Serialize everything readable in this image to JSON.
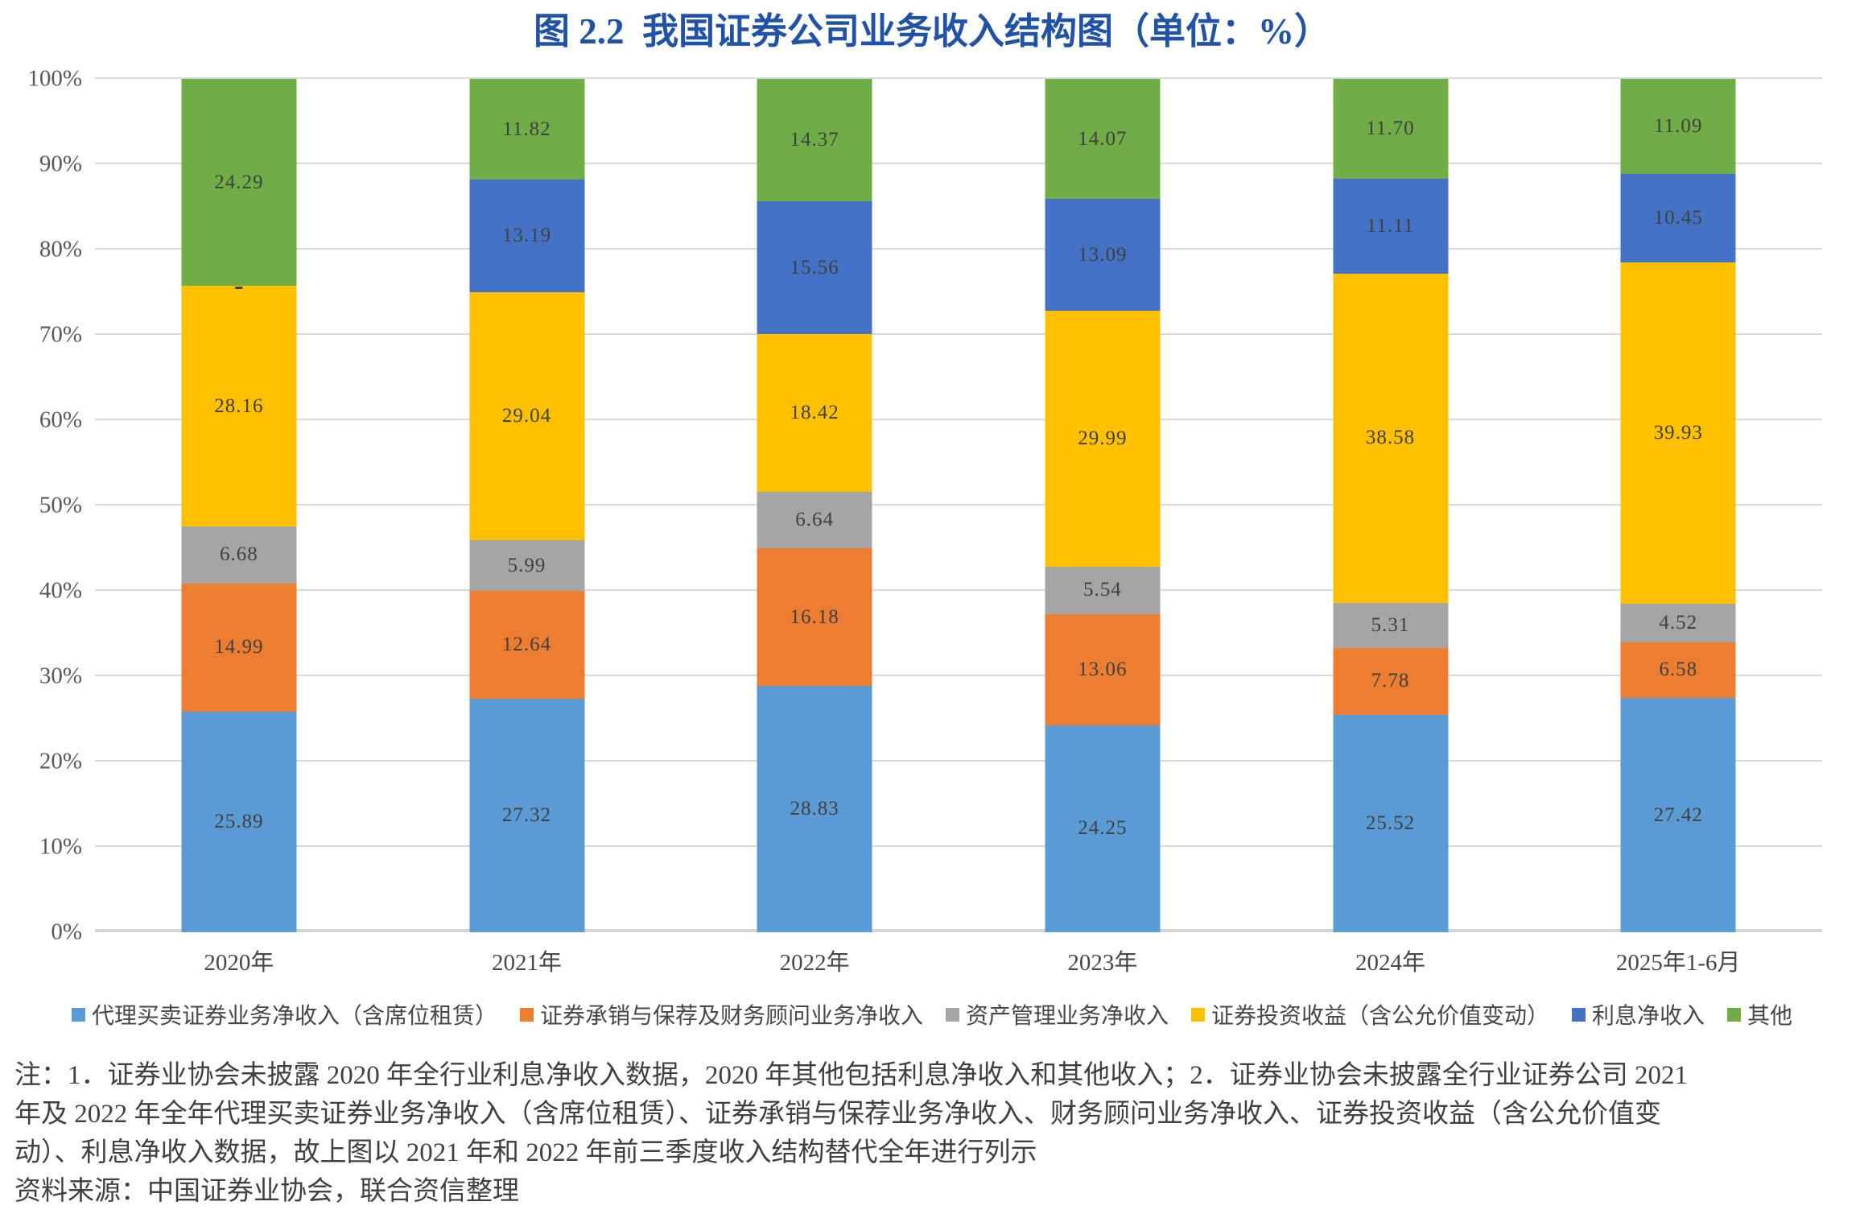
{
  "title": "图 2.2  我国证券公司业务收入结构图（单位：%）",
  "title_color": "#2052A8",
  "chart_data": {
    "type": "bar",
    "stacked": true,
    "unit": "%",
    "title": "图 2.2  我国证券公司业务收入结构图（单位：%）",
    "categories": [
      "2020年",
      "2021年",
      "2022年",
      "2023年",
      "2024年",
      "2025年1-6月"
    ],
    "series": [
      {
        "name": "代理买卖证券业务净收入（含席位租赁）",
        "color": "#5B9BD5",
        "values": [
          25.89,
          27.32,
          28.83,
          24.25,
          25.52,
          27.42
        ]
      },
      {
        "name": "证券承销与保荐及财务顾问业务净收入",
        "color": "#ED7D31",
        "values": [
          14.99,
          12.64,
          16.18,
          13.06,
          7.78,
          6.58
        ]
      },
      {
        "name": "资产管理业务净收入",
        "color": "#A5A5A5",
        "values": [
          6.68,
          5.99,
          6.64,
          5.54,
          5.31,
          4.52
        ]
      },
      {
        "name": "证券投资收益（含公允价值变动）",
        "color": "#FFC000",
        "values": [
          28.16,
          29.04,
          18.42,
          29.99,
          38.58,
          39.93
        ]
      },
      {
        "name": "利息净收入",
        "color": "#4472C4",
        "values": [
          null,
          13.19,
          15.56,
          13.09,
          11.11,
          10.45
        ],
        "null_label": "-"
      },
      {
        "name": "其他",
        "color": "#70AD47",
        "values": [
          24.29,
          11.82,
          14.37,
          14.07,
          11.7,
          11.09
        ]
      }
    ],
    "ylim": [
      0,
      100
    ],
    "ytick_step": 10,
    "ytick_suffix": "%",
    "grid": true,
    "legend_position": "bottom",
    "value_label_decimals": 2,
    "gridline_color": "#D9D9D9",
    "axis_text_color": "#595959",
    "value_label_color": "#404040"
  },
  "notes": [
    "注：1．证券业协会未披露 2020 年全行业利息净收入数据，2020 年其他包括利息净收入和其他收入；2．证券业协会未披露全行业证券公司 2021",
    "年及 2022 年全年代理买卖证券业务净收入（含席位租赁）、证券承销与保荐业务净收入、财务顾问业务净收入、证券投资收益（含公允价值变",
    "动）、利息净收入数据，故上图以 2021 年和 2022 年前三季度收入结构替代全年进行列示",
    "资料来源：中国证券业协会，联合资信整理"
  ]
}
